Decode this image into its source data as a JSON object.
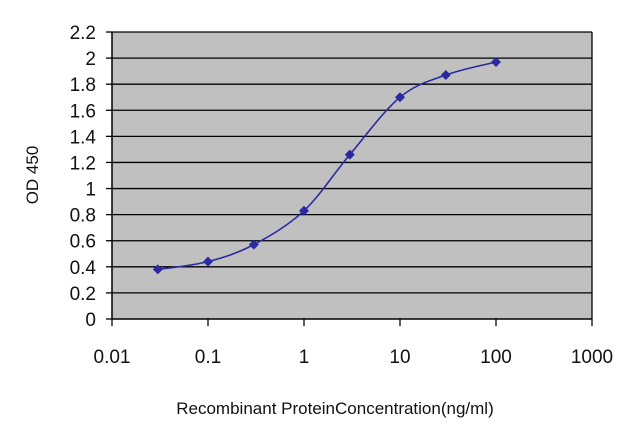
{
  "chart_data": {
    "type": "line",
    "xlabel": "Recombinant ProteinConcentration(ng/ml)",
    "ylabel": "OD 450",
    "x_scale": "log",
    "xlim": [
      0.01,
      1000
    ],
    "ylim": [
      0,
      2.2
    ],
    "grid": "horizontal",
    "legend": "none",
    "x_ticks": [
      "0.01",
      "0.1",
      "1",
      "10",
      "100",
      "1000"
    ],
    "y_ticks": [
      "0",
      "0.2",
      "0.4",
      "0.6",
      "0.8",
      "1",
      "1.2",
      "1.4",
      "1.6",
      "1.8",
      "2",
      "2.2"
    ],
    "series": [
      {
        "color": "#2a2aa0",
        "x": [
          0.03,
          0.1,
          0.3,
          1,
          3,
          10,
          30,
          100
        ],
        "y": [
          0.38,
          0.44,
          0.57,
          0.83,
          1.26,
          1.7,
          1.87,
          1.97
        ]
      }
    ],
    "colors": {
      "plot_background": "#c0c0c0",
      "grid": "#000000",
      "line": "#2a2aa0"
    }
  }
}
